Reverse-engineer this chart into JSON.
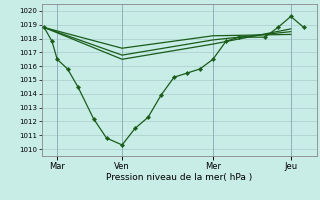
{
  "xlabel": "Pression niveau de la mer( hPa )",
  "bg_color": "#c8ece6",
  "line_color": "#1a5c1a",
  "ylim": [
    1009.5,
    1020.5
  ],
  "yticks": [
    1010,
    1011,
    1012,
    1013,
    1014,
    1015,
    1016,
    1017,
    1018,
    1019,
    1020
  ],
  "xtick_labels": [
    "Mar",
    "Ven",
    "Mer",
    "Jeu"
  ],
  "xtick_positions": [
    0.5,
    3.0,
    6.5,
    9.5
  ],
  "xlim": [
    -0.1,
    10.5
  ],
  "main_line_x": [
    0.0,
    0.3,
    0.5,
    0.9,
    1.3,
    1.9,
    2.4,
    3.0,
    3.5,
    4.0,
    4.5,
    5.0,
    5.5,
    6.0,
    6.5,
    7.0,
    7.5,
    8.5,
    9.0,
    9.5,
    10.0
  ],
  "main_line_y": [
    1018.8,
    1017.8,
    1016.5,
    1015.8,
    1014.5,
    1012.2,
    1010.8,
    1010.3,
    1011.5,
    1012.3,
    1013.9,
    1015.2,
    1015.5,
    1015.8,
    1016.5,
    1017.8,
    1018.1,
    1018.1,
    1018.8,
    1019.6,
    1018.8
  ],
  "forecast_lines": [
    {
      "x": [
        0.0,
        3.0,
        6.5,
        9.5
      ],
      "y": [
        1018.8,
        1017.3,
        1018.2,
        1018.3
      ]
    },
    {
      "x": [
        0.0,
        3.0,
        6.5,
        9.5
      ],
      "y": [
        1018.8,
        1016.8,
        1017.9,
        1018.5
      ]
    },
    {
      "x": [
        0.0,
        3.0,
        6.5,
        9.5
      ],
      "y": [
        1018.8,
        1016.5,
        1017.6,
        1018.7
      ]
    }
  ],
  "vline_positions": [
    0.5,
    3.0,
    6.5,
    9.5
  ]
}
